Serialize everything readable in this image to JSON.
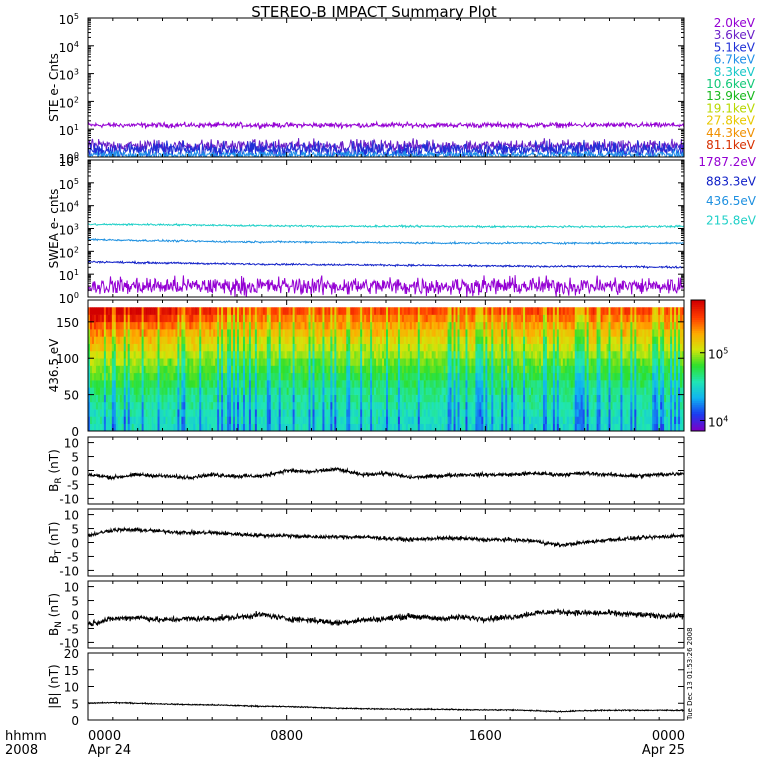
{
  "title": "STEREO-B IMPACT Summary Plot",
  "timestamp": "Tue Dec 13 01:53:26 2008",
  "x_axis": {
    "row1_label": "hhmm",
    "row2_label": "2008",
    "ticks": [
      {
        "t": 0,
        "time": "0000",
        "date": "Apr 24"
      },
      {
        "t": 8,
        "time": "0800",
        "date": ""
      },
      {
        "t": 16,
        "time": "1600",
        "date": ""
      },
      {
        "t": 24,
        "time": "0000",
        "date": "Apr 25"
      }
    ],
    "range_hours": [
      0,
      24
    ]
  },
  "ste_legend": [
    {
      "label": "2.0keV",
      "color": "#9400d3"
    },
    {
      "label": "3.6keV",
      "color": "#6a1ec8"
    },
    {
      "label": "5.1keV",
      "color": "#1f2fd6"
    },
    {
      "label": "6.7keV",
      "color": "#1f8fe8"
    },
    {
      "label": "8.3keV",
      "color": "#18c8c8"
    },
    {
      "label": "10.6keV",
      "color": "#12c878"
    },
    {
      "label": "13.9keV",
      "color": "#16b81a"
    },
    {
      "label": "19.1keV",
      "color": "#b8d800"
    },
    {
      "label": "27.8keV",
      "color": "#e8c800"
    },
    {
      "label": "44.3keV",
      "color": "#f09000"
    },
    {
      "label": "81.1keV",
      "color": "#d83000"
    }
  ],
  "swea_legend": [
    {
      "label": "1787.2eV",
      "color": "#9400d3"
    },
    {
      "label": "883.3eV",
      "color": "#1020c8"
    },
    {
      "label": "436.5eV",
      "color": "#1e90e0"
    },
    {
      "label": "215.8eV",
      "color": "#20d0c8"
    }
  ],
  "chart_data": [
    {
      "type": "line",
      "name": "ste",
      "ylabel": "STE e- Cnts",
      "yscale": "log",
      "ylim": [
        1,
        100000
      ],
      "yticks": [
        {
          "base": "10",
          "exp": "0"
        },
        {
          "base": "10",
          "exp": "1"
        },
        {
          "base": "10",
          "exp": "2"
        },
        {
          "base": "10",
          "exp": "3"
        },
        {
          "base": "10",
          "exp": "4"
        },
        {
          "base": "10",
          "exp": "5"
        }
      ],
      "series": [
        {
          "name": "2.0keV",
          "level": 14,
          "noise": 0.08
        },
        {
          "name": "3.6keV",
          "level": 2.5,
          "noise": 0.2
        },
        {
          "name": "5.1keV",
          "level": 1.8,
          "noise": 0.25
        },
        {
          "name": "6.7keV",
          "level": 1.2,
          "noise": 0.12
        }
      ]
    },
    {
      "type": "line",
      "name": "swea",
      "ylabel": "SWEA e- cnts",
      "yscale": "log",
      "ylim": [
        1,
        1000000
      ],
      "yticks": [
        {
          "base": "10",
          "exp": "0"
        },
        {
          "base": "10",
          "exp": "1"
        },
        {
          "base": "10",
          "exp": "2"
        },
        {
          "base": "10",
          "exp": "3"
        },
        {
          "base": "10",
          "exp": "4"
        },
        {
          "base": "10",
          "exp": "5"
        },
        {
          "base": "10",
          "exp": "6"
        }
      ],
      "series": [
        {
          "name": "215.8eV",
          "x": [
            0,
            2,
            4,
            6,
            8,
            10,
            12,
            14,
            16,
            18,
            20,
            22,
            24
          ],
          "y": [
            1500,
            1500,
            1450,
            1350,
            1300,
            1250,
            1250,
            1250,
            1200,
            1200,
            1200,
            1200,
            1250
          ]
        },
        {
          "name": "436.5eV",
          "x": [
            0,
            2,
            4,
            6,
            8,
            10,
            12,
            14,
            16,
            18,
            20,
            22,
            24
          ],
          "y": [
            330,
            300,
            280,
            260,
            260,
            250,
            240,
            230,
            230,
            230,
            230,
            230,
            230
          ]
        },
        {
          "name": "883.3eV",
          "x": [
            0,
            2,
            4,
            6,
            8,
            10,
            12,
            14,
            16,
            18,
            20,
            22,
            24
          ],
          "y": [
            35,
            32,
            30,
            28,
            27,
            26,
            25,
            24,
            23,
            22,
            22,
            21,
            20
          ]
        },
        {
          "name": "1787.2eV",
          "level": 3,
          "noise": 0.35
        }
      ]
    },
    {
      "type": "heatmap",
      "name": "pad",
      "ylabel": "436.5 eV",
      "ylim": [
        0,
        180
      ],
      "yticks": [
        0,
        50,
        100,
        150
      ],
      "data_max": 170,
      "colorbar": {
        "scale": "log",
        "range": [
          7000,
          600000
        ],
        "ticks": [
          {
            "base": "10",
            "exp": "4"
          },
          {
            "base": "10",
            "exp": "5"
          }
        ]
      }
    },
    {
      "type": "line",
      "name": "br",
      "ylabel": "B",
      "ylabel_sub": "R",
      "ylabel_unit": "(nT)",
      "ylim": [
        -12,
        12
      ],
      "yticks": [
        -10,
        -5,
        0,
        5,
        10
      ],
      "x": [
        0,
        1,
        2,
        3,
        4,
        5,
        6,
        7,
        8,
        9,
        10,
        11,
        12,
        13,
        14,
        15,
        16,
        17,
        18,
        19,
        20,
        21,
        22,
        23,
        24
      ],
      "y": [
        -1.5,
        -2.5,
        -1.5,
        -2,
        -2.5,
        -1.5,
        -2,
        -2,
        0,
        -0.5,
        0.5,
        -1.5,
        -1,
        -2.5,
        -2,
        -1.5,
        -1.5,
        -1.5,
        -1,
        -1.5,
        -1,
        -1.5,
        -2,
        -1.5,
        -1
      ]
    },
    {
      "type": "line",
      "name": "bt",
      "ylabel": "B",
      "ylabel_sub": "T",
      "ylabel_unit": "(nT)",
      "ylim": [
        -12,
        12
      ],
      "yticks": [
        -10,
        -5,
        0,
        5,
        10
      ],
      "x": [
        0,
        1,
        2,
        3,
        4,
        5,
        6,
        7,
        8,
        9,
        10,
        11,
        12,
        13,
        14,
        15,
        16,
        17,
        18,
        19,
        20,
        21,
        22,
        23,
        24
      ],
      "y": [
        2.5,
        4.5,
        4.5,
        4,
        3.5,
        3.5,
        3,
        2.5,
        2.5,
        2,
        2,
        2,
        1.5,
        1,
        1.5,
        1.5,
        1,
        1,
        0.5,
        -1,
        0,
        1,
        1.5,
        2,
        2.5
      ]
    },
    {
      "type": "line",
      "name": "bn",
      "ylabel": "B",
      "ylabel_sub": "N",
      "ylabel_unit": "(nT)",
      "ylim": [
        -12,
        12
      ],
      "yticks": [
        -10,
        -5,
        0,
        5,
        10
      ],
      "x": [
        0,
        1,
        2,
        3,
        4,
        5,
        6,
        7,
        8,
        9,
        10,
        11,
        12,
        13,
        14,
        15,
        16,
        17,
        18,
        19,
        20,
        21,
        22,
        23,
        24
      ],
      "y": [
        -3.5,
        -1.5,
        -1,
        -2,
        -1.5,
        -1.5,
        -1,
        0,
        -1.5,
        -2,
        -3,
        -2,
        -1.5,
        -0.5,
        -1.5,
        -1,
        -1.5,
        -1,
        0.5,
        1,
        0.5,
        0.5,
        0,
        -0.5,
        -0.5
      ]
    },
    {
      "type": "line",
      "name": "bmag",
      "ylabel": "|B| (nT)",
      "ylim": [
        0,
        20
      ],
      "yticks": [
        0,
        5,
        10,
        15,
        20
      ],
      "x": [
        0,
        1,
        2,
        3,
        4,
        5,
        6,
        7,
        8,
        9,
        10,
        11,
        12,
        13,
        14,
        15,
        16,
        17,
        18,
        19,
        20,
        21,
        22,
        23,
        24
      ],
      "y": [
        5,
        5.2,
        5,
        4.8,
        4.6,
        4.5,
        4.3,
        4.1,
        4,
        3.8,
        3.5,
        3.4,
        3.3,
        3.2,
        3.2,
        3.1,
        3,
        3,
        2.8,
        2.5,
        2.8,
        2.9,
        2.9,
        2.9,
        2.9
      ]
    }
  ]
}
